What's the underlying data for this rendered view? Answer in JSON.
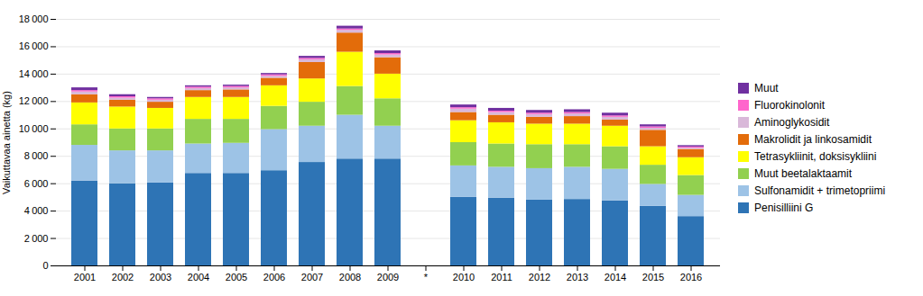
{
  "chart_data": {
    "type": "bar",
    "stacked": true,
    "categories": [
      "2001",
      "2002",
      "2003",
      "2004",
      "2005",
      "2006",
      "2007",
      "2008",
      "2009",
      "*",
      "2010",
      "2011",
      "2012",
      "2013",
      "2014",
      "2015",
      "2016"
    ],
    "series": [
      {
        "name": "Penisilliini G",
        "color": "#2E74B5",
        "values": [
          6200,
          6000,
          6050,
          6750,
          6750,
          6950,
          7550,
          7800,
          7800,
          0,
          5000,
          4950,
          4800,
          4850,
          4750,
          4350,
          3600
        ]
      },
      {
        "name": "Sulfonamidit + trimetopriimi",
        "color": "#9DC3E6",
        "values": [
          2600,
          2400,
          2350,
          2150,
          2200,
          3000,
          2650,
          3200,
          2400,
          0,
          2300,
          2250,
          2300,
          2350,
          2300,
          1600,
          1550
        ]
      },
      {
        "name": "Muut beetalaktaamit",
        "color": "#92D050",
        "values": [
          1500,
          1600,
          1600,
          1800,
          1750,
          1700,
          1750,
          2100,
          2000,
          0,
          1700,
          1700,
          1750,
          1650,
          1650,
          1400,
          1450
        ]
      },
      {
        "name": "Tetrasykliinit, doksisykliini",
        "color": "#FFFF00",
        "values": [
          1600,
          1600,
          1500,
          1600,
          1600,
          1500,
          1700,
          2500,
          1800,
          0,
          1600,
          1550,
          1500,
          1500,
          1500,
          1350,
          1300
        ]
      },
      {
        "name": "Makrolidit ja linkosamidit",
        "color": "#E36C0A",
        "values": [
          600,
          500,
          450,
          500,
          550,
          550,
          1200,
          1400,
          1200,
          0,
          600,
          550,
          500,
          550,
          450,
          1200,
          600
        ]
      },
      {
        "name": "Aminoglykosidit",
        "color": "#D9B8D9",
        "values": [
          200,
          150,
          150,
          150,
          150,
          150,
          200,
          200,
          200,
          0,
          250,
          200,
          200,
          200,
          200,
          150,
          100
        ]
      },
      {
        "name": "Fluorokinolonit",
        "color": "#FF66CC",
        "values": [
          100,
          100,
          100,
          100,
          100,
          100,
          100,
          100,
          100,
          0,
          100,
          100,
          100,
          100,
          100,
          100,
          80
        ]
      },
      {
        "name": "Muut",
        "color": "#7030A0",
        "values": [
          200,
          150,
          100,
          100,
          100,
          100,
          150,
          200,
          200,
          0,
          200,
          200,
          200,
          200,
          200,
          150,
          100
        ]
      }
    ],
    "ylabel": "Vaikuttavaa ainetta (kg)",
    "ylim": [
      0,
      18000
    ],
    "yticks": [
      0,
      {
        "value": 2000,
        "label": "2 000"
      },
      {
        "value": 4000,
        "label": "4 000"
      },
      {
        "value": 6000,
        "label": "6 000"
      },
      {
        "value": 8000,
        "label": "8 000"
      },
      {
        "value": 10000,
        "label": "10 000"
      },
      {
        "value": 12000,
        "label": "12 000"
      },
      {
        "value": 14000,
        "label": "14 000"
      },
      {
        "value": 16000,
        "label": "16 000"
      },
      {
        "value": 18000,
        "label": "18 000"
      }
    ],
    "grid": true,
    "legend": "right"
  }
}
